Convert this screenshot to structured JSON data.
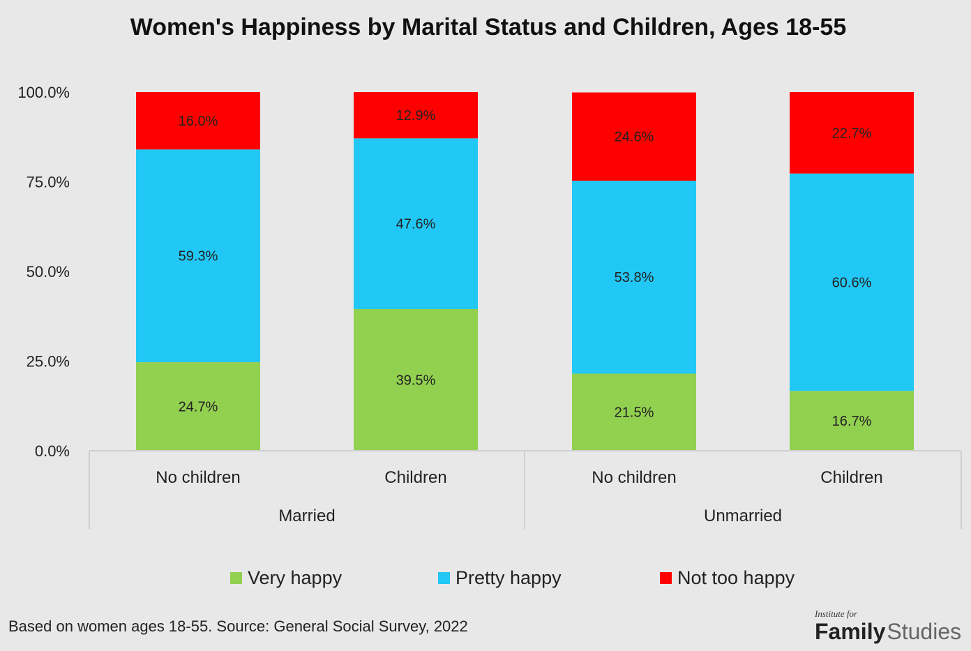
{
  "chart_data": {
    "type": "bar",
    "stacked": true,
    "title": "Women's Happiness by Marital Status and Children, Ages 18-55",
    "y_ticks": [
      "0.0%",
      "25.0%",
      "50.0%",
      "75.0%",
      "100.0%"
    ],
    "ylim": [
      0,
      100
    ],
    "groups": [
      "Married",
      "Unmarried"
    ],
    "categories": [
      "No children",
      "Children",
      "No children",
      "Children"
    ],
    "category_groups": [
      0,
      0,
      1,
      1
    ],
    "series": [
      {
        "name": "Very happy",
        "color": "#92d050",
        "values": [
          24.7,
          39.5,
          21.5,
          16.7
        ],
        "labels": [
          "24.7%",
          "39.5%",
          "21.5%",
          "16.7%"
        ]
      },
      {
        "name": "Pretty happy",
        "color": "#22c8f5",
        "values": [
          59.3,
          47.6,
          53.8,
          60.6
        ],
        "labels": [
          "59.3%",
          "47.6%",
          "53.8%",
          "60.6%"
        ]
      },
      {
        "name": "Not too happy",
        "color": "#ff0000",
        "values": [
          16.0,
          12.9,
          24.6,
          22.7
        ],
        "labels": [
          "16.0%",
          "12.9%",
          "24.6%",
          "22.7%"
        ]
      }
    ],
    "legend_position": "bottom"
  },
  "source": "Based on women ages 18-55. Source: General Social Survey, 2022",
  "logo": {
    "top": "Institute for",
    "bold": "Family",
    "light": "Studies"
  }
}
